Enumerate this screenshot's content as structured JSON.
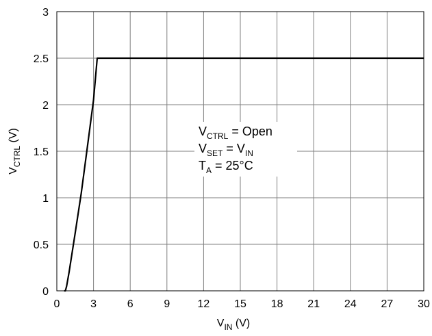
{
  "chart_data": {
    "type": "line",
    "xlabel": {
      "main": "V",
      "sub": "IN",
      "unit": " (V)"
    },
    "ylabel": {
      "main": "V",
      "sub": "CTRL",
      "unit": " (V)"
    },
    "xlim": [
      0,
      30
    ],
    "ylim": [
      0,
      3
    ],
    "xticks": [
      0,
      3,
      6,
      9,
      12,
      15,
      18,
      21,
      24,
      27,
      30
    ],
    "yticks": [
      0,
      0.5,
      1,
      1.5,
      2,
      2.5,
      3
    ],
    "xtick_labels": [
      "0",
      "3",
      "6",
      "9",
      "12",
      "15",
      "18",
      "21",
      "24",
      "27",
      "30"
    ],
    "ytick_labels": [
      "0",
      "0.5",
      "1",
      "1.5",
      "2",
      "2.5",
      "3"
    ],
    "grid": true,
    "series": [
      {
        "x": [
          0.6,
          0.7,
          0.8,
          1.0,
          1.5,
          2.0,
          2.5,
          3.0,
          3.3,
          3.5,
          30
        ],
        "y": [
          0.0,
          0.0,
          0.05,
          0.2,
          0.62,
          1.05,
          1.55,
          2.05,
          2.5,
          2.5,
          2.5
        ]
      }
    ],
    "annotations": [
      {
        "line": 1,
        "main": "V",
        "sub": "CTRL",
        "rest": " = Open"
      },
      {
        "line": 2,
        "main": "V",
        "sub": "SET",
        "rest": " = V",
        "sub2": "IN"
      },
      {
        "line": 3,
        "main": "T",
        "sub": "A",
        "rest": " = 25°C"
      }
    ]
  }
}
